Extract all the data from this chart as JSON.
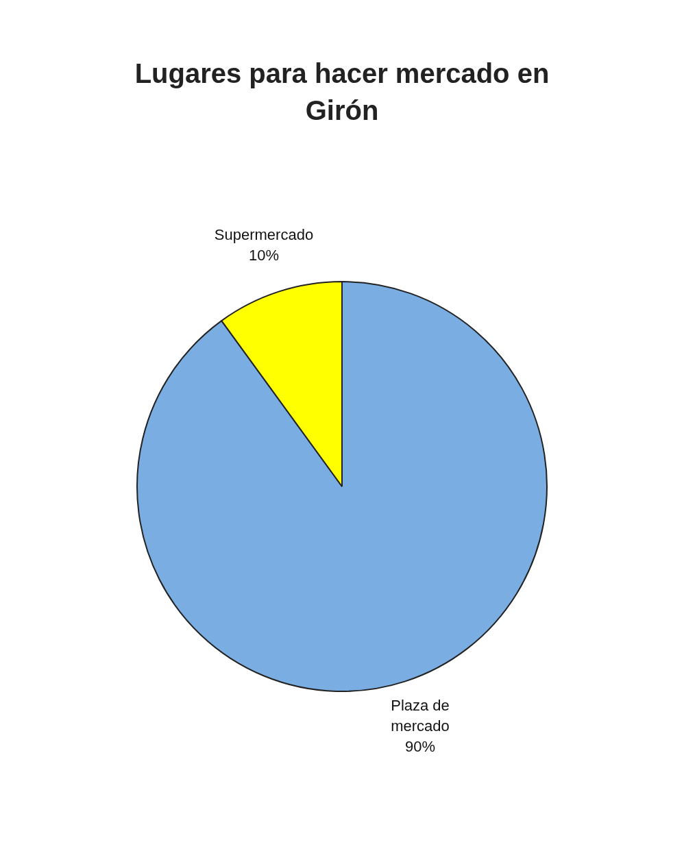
{
  "chart_data": {
    "type": "pie",
    "title": "Lugares para hacer mercado en Girón",
    "categories": [
      "Plaza de mercado",
      "Supermercado"
    ],
    "values": [
      90,
      10
    ],
    "value_labels": [
      "90%",
      "10%"
    ],
    "colors": [
      "#7aaee2",
      "#ffff00"
    ],
    "legend": false
  }
}
